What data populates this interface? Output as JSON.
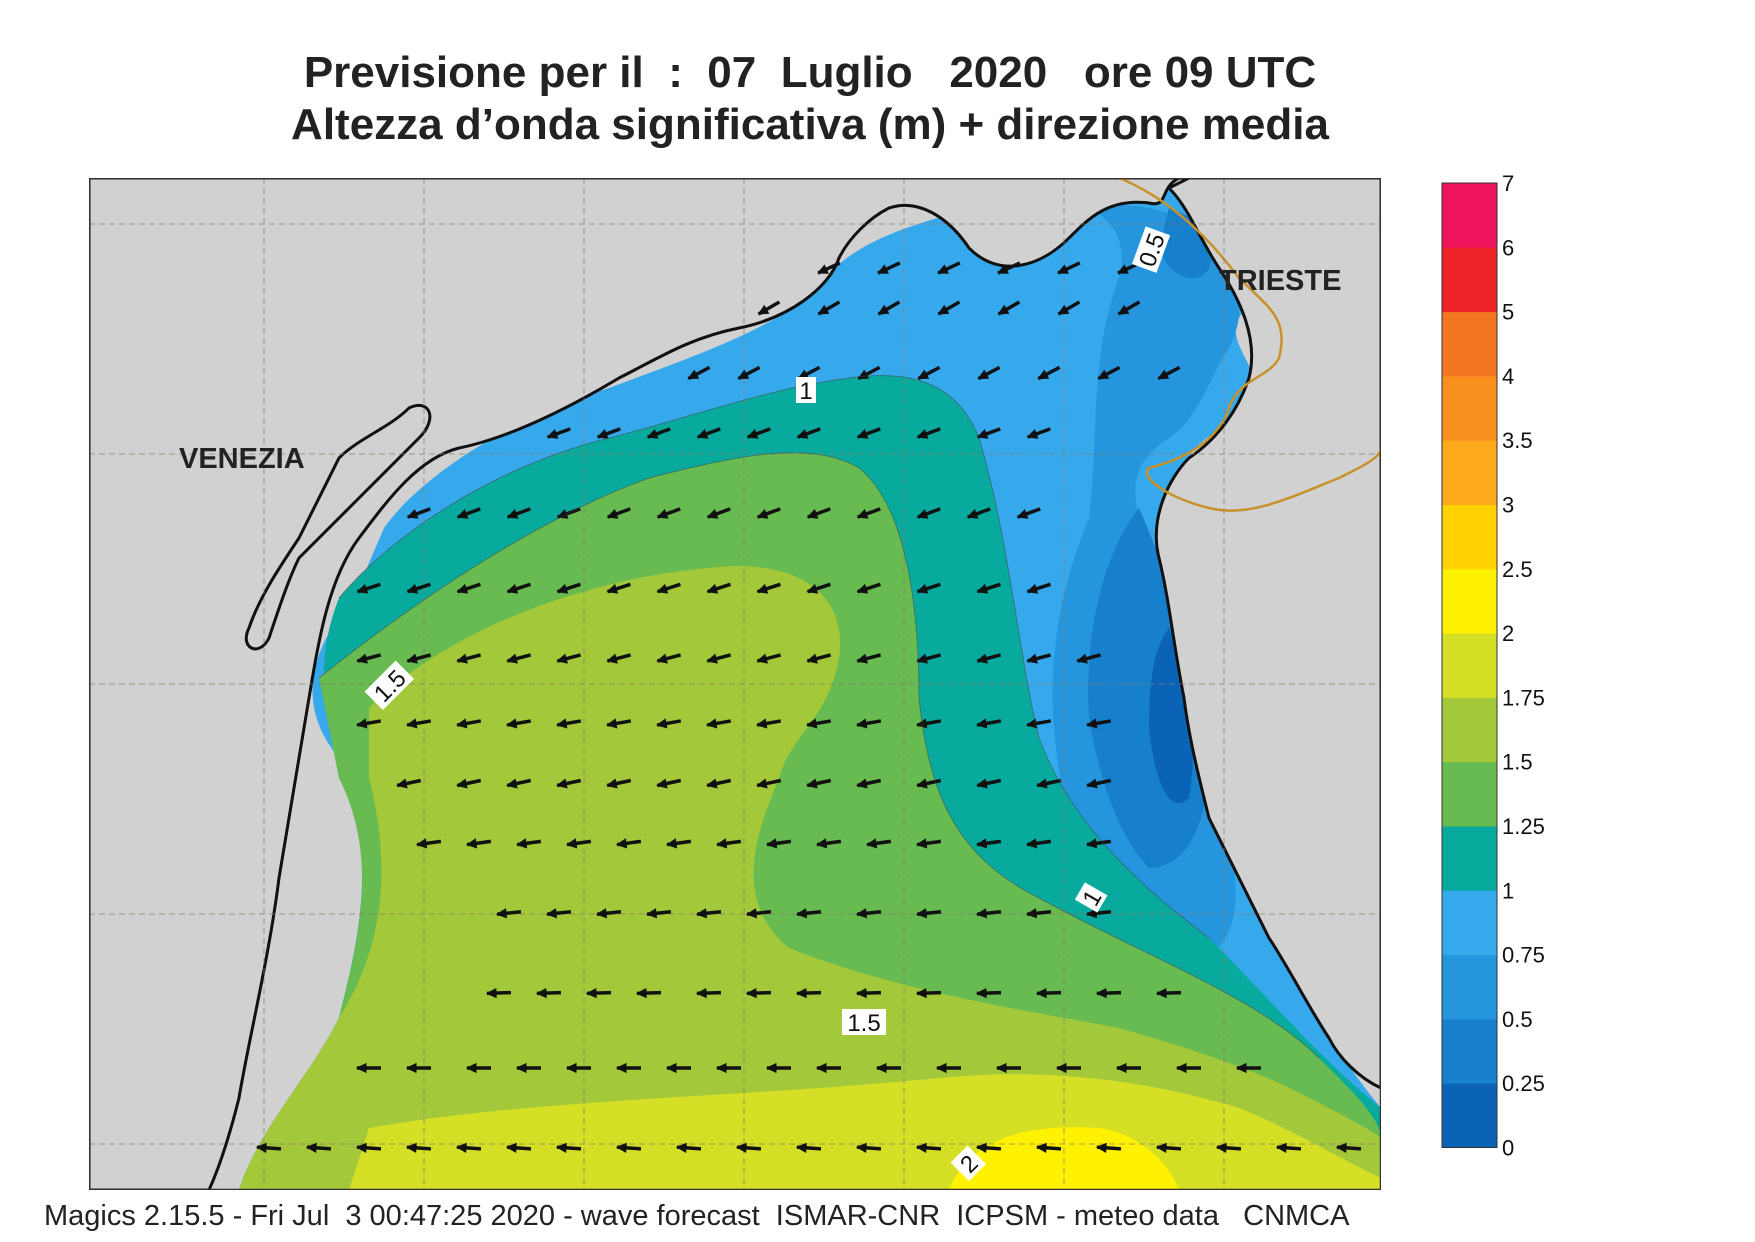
{
  "title": {
    "line1": "Previsione per il  :  07  Luglio   2020   ore 09 UTC",
    "line2": "Altezza d’onda significativa (m) + direzione media"
  },
  "map": {
    "cities": [
      "VENEZIA",
      "TRIESTE"
    ],
    "contour_labels": [
      "0.5",
      "1",
      "1",
      "1.5",
      "1.5",
      "2"
    ],
    "land_color": "#d1d1d1",
    "coast_color": "#111111",
    "border_color": "#c8922a"
  },
  "legend": {
    "levels": [
      "0",
      "0.25",
      "0.5",
      "0.75",
      "1",
      "1.25",
      "1.5",
      "1.75",
      "2",
      "2.5",
      "3",
      "3.5",
      "4",
      "5",
      "6",
      "7"
    ],
    "colors": [
      "#0a63b6",
      "#1680cc",
      "#2596dd",
      "#36a8ec",
      "#08aa9e",
      "#68bb50",
      "#a3c93a",
      "#d5df26",
      "#fff200",
      "#ffd200",
      "#fdaa1c",
      "#f8901e",
      "#f47622",
      "#ec2327",
      "#ed145b"
    ]
  },
  "footer": "Magics 2.15.5 - Fri Jul  3 00:47:25 2020 - wave forecast  ISMAR-CNR  ICPSM - meteo data   CNMCA"
}
